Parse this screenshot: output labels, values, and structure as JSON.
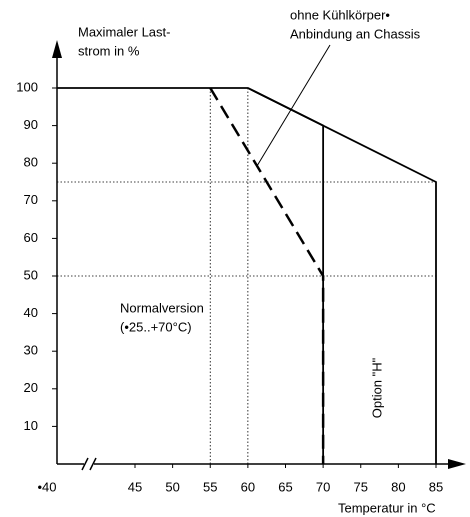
{
  "chart_data": {
    "type": "line",
    "y_title": [
      "Maximaler Last-",
      "strom in %"
    ],
    "x_title": "Temperatur in °C",
    "xlim": [
      -40,
      85
    ],
    "ylim": [
      0,
      100
    ],
    "axis_break": [
      -40,
      45
    ],
    "xticks": [
      {
        "value": -40,
        "label": "•40"
      },
      45,
      50,
      55,
      60,
      65,
      70,
      75,
      80,
      85
    ],
    "yticks": [
      10,
      20,
      30,
      40,
      50,
      60,
      70,
      80,
      90,
      100
    ],
    "series": [
      {
        "color": "#000000",
        "dash": "solid",
        "x": [
          -40,
          60,
          85,
          85
        ],
        "values": [
          100,
          100,
          75,
          0
        ]
      },
      {
        "color": "#000000",
        "dash": "solid",
        "x": [
          60,
          70,
          70
        ],
        "values": [
          100,
          90,
          0
        ]
      },
      {
        "color": "#000000",
        "dash": "dashed",
        "x": [
          55,
          70,
          70
        ],
        "values": [
          100,
          50,
          0
        ]
      }
    ],
    "reference_lines": {
      "x": [
        55,
        60
      ],
      "y": [
        75,
        50
      ]
    },
    "annotations": [
      {
        "text": [
          "ohne Kühlkörper•",
          "Anbindung an Chassis"
        ]
      },
      {
        "text": [
          "Normalversion",
          "(•25..+70°C)"
        ]
      },
      {
        "text": [
          "Option \"H\""
        ]
      }
    ]
  }
}
